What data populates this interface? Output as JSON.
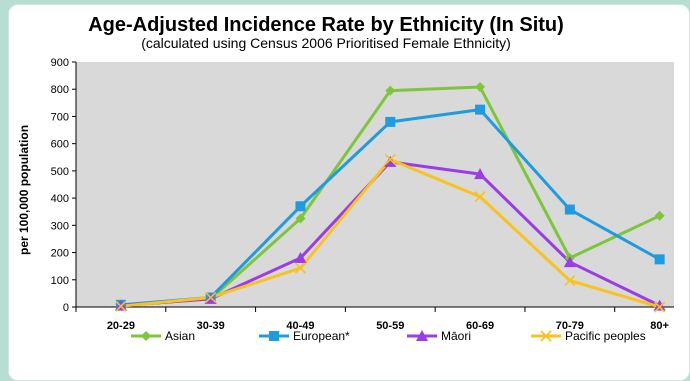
{
  "chart_data": {
    "type": "line",
    "title": "Age-Adjusted Incidence Rate by Ethnicity (In Situ)",
    "subtitle": "(calculated using Census 2006 Prioritised Female Ethnicity)",
    "ylabel": "per 100,000 population",
    "xlabel": "",
    "categories": [
      "20-29",
      "30-39",
      "40-49",
      "50-59",
      "60-69",
      "70-79",
      "80+"
    ],
    "ylim": [
      0,
      900
    ],
    "yticks": [
      0,
      100,
      200,
      300,
      400,
      500,
      600,
      700,
      800,
      900
    ],
    "grid": false,
    "legend": "bottom",
    "series": [
      {
        "name": "Asian",
        "color": "#7dc63a",
        "marker": "diamond",
        "values": [
          5,
          30,
          325,
          795,
          808,
          180,
          335
        ]
      },
      {
        "name": "European*",
        "color": "#1f9be0",
        "marker": "square",
        "values": [
          8,
          35,
          370,
          680,
          725,
          358,
          175
        ]
      },
      {
        "name": "Māori",
        "color": "#9a3ce8",
        "marker": "triangle",
        "values": [
          5,
          30,
          180,
          533,
          488,
          165,
          5
        ]
      },
      {
        "name": "Pacific peoples",
        "color": "#f7c31c",
        "marker": "x",
        "values": [
          3,
          35,
          143,
          542,
          405,
          97,
          0
        ]
      }
    ],
    "plot_bg": "#d9d9d9"
  }
}
